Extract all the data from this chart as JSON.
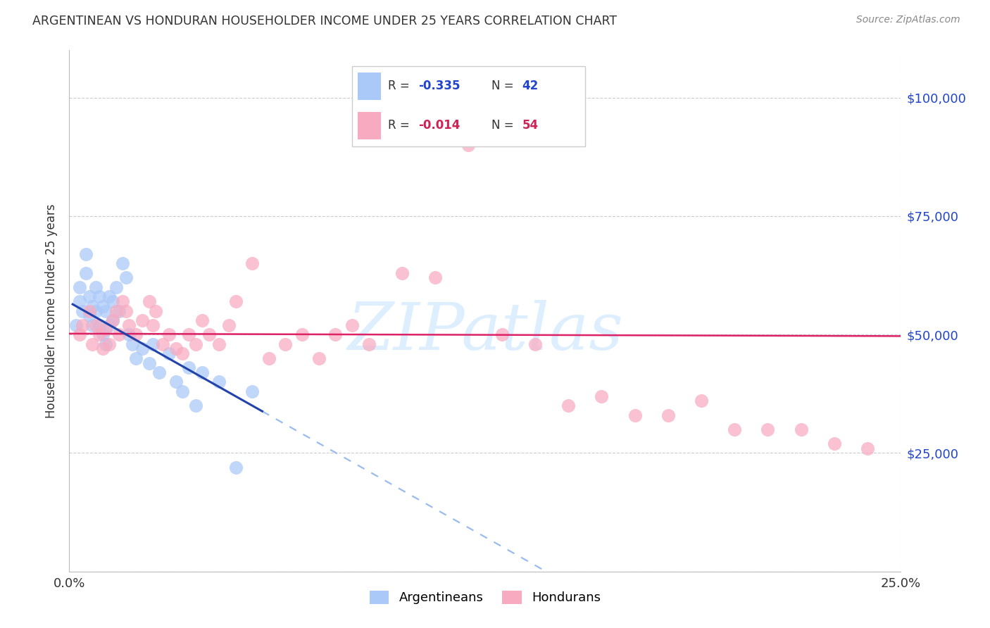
{
  "title": "ARGENTINEAN VS HONDURAN HOUSEHOLDER INCOME UNDER 25 YEARS CORRELATION CHART",
  "source": "Source: ZipAtlas.com",
  "ylabel": "Householder Income Under 25 years",
  "xlim": [
    0.0,
    0.25
  ],
  "ylim": [
    0,
    110000
  ],
  "yticks": [
    0,
    25000,
    50000,
    75000,
    100000
  ],
  "xticks": [
    0.0,
    0.05,
    0.1,
    0.15,
    0.2,
    0.25
  ],
  "blue_color": "#aac8f8",
  "pink_color": "#f8aac0",
  "blue_line_color": "#2244aa",
  "pink_line_color": "#dd2266",
  "dash_color": "#99bbee",
  "watermark_color": "#ddeeff",
  "blue_N": 42,
  "pink_N": 54,
  "blue_R": -0.335,
  "pink_R": -0.014,
  "blue_x": [
    0.002,
    0.003,
    0.003,
    0.004,
    0.005,
    0.005,
    0.006,
    0.006,
    0.007,
    0.007,
    0.008,
    0.008,
    0.009,
    0.009,
    0.01,
    0.01,
    0.011,
    0.011,
    0.012,
    0.012,
    0.013,
    0.013,
    0.014,
    0.015,
    0.016,
    0.017,
    0.018,
    0.019,
    0.02,
    0.022,
    0.024,
    0.025,
    0.027,
    0.03,
    0.032,
    0.034,
    0.036,
    0.038,
    0.04,
    0.045,
    0.05,
    0.055
  ],
  "blue_y": [
    52000,
    57000,
    60000,
    55000,
    63000,
    67000,
    58000,
    54000,
    56000,
    52000,
    60000,
    55000,
    58000,
    52000,
    56000,
    50000,
    55000,
    48000,
    58000,
    52000,
    57000,
    53000,
    60000,
    55000,
    65000,
    62000,
    50000,
    48000,
    45000,
    47000,
    44000,
    48000,
    42000,
    46000,
    40000,
    38000,
    43000,
    35000,
    42000,
    40000,
    22000,
    38000
  ],
  "pink_x": [
    0.003,
    0.004,
    0.006,
    0.007,
    0.008,
    0.009,
    0.01,
    0.011,
    0.012,
    0.013,
    0.014,
    0.015,
    0.016,
    0.017,
    0.018,
    0.02,
    0.022,
    0.024,
    0.025,
    0.026,
    0.028,
    0.03,
    0.032,
    0.034,
    0.036,
    0.038,
    0.04,
    0.042,
    0.045,
    0.048,
    0.05,
    0.055,
    0.06,
    0.065,
    0.07,
    0.075,
    0.08,
    0.085,
    0.09,
    0.1,
    0.11,
    0.12,
    0.13,
    0.14,
    0.15,
    0.16,
    0.17,
    0.18,
    0.19,
    0.2,
    0.21,
    0.22,
    0.23,
    0.24
  ],
  "pink_y": [
    50000,
    52000,
    55000,
    48000,
    52000,
    50000,
    47000,
    51000,
    48000,
    53000,
    55000,
    50000,
    57000,
    55000,
    52000,
    50000,
    53000,
    57000,
    52000,
    55000,
    48000,
    50000,
    47000,
    46000,
    50000,
    48000,
    53000,
    50000,
    48000,
    52000,
    57000,
    65000,
    45000,
    48000,
    50000,
    45000,
    50000,
    52000,
    48000,
    63000,
    62000,
    90000,
    50000,
    48000,
    35000,
    37000,
    33000,
    33000,
    36000,
    30000,
    30000,
    30000,
    27000,
    26000
  ]
}
